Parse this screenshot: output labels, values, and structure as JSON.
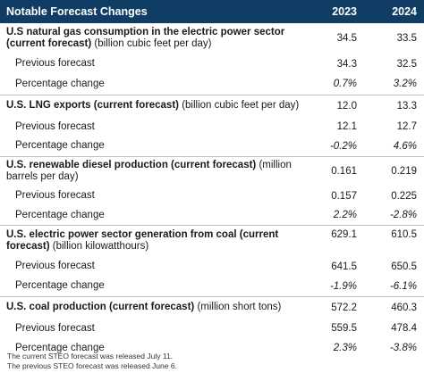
{
  "header": {
    "title": "Notable Forecast Changes",
    "year1": "2023",
    "year2": "2024"
  },
  "groups": [
    {
      "metric": "U.S natural gas consumption in the electric power sector (current forecast)",
      "unit": "(billion cubic feet per day)",
      "current": [
        "34.5",
        "33.5"
      ],
      "previous_label": "Previous forecast",
      "previous": [
        "34.3",
        "32.5"
      ],
      "change_label": "Percentage change",
      "change": [
        "0.7%",
        "3.2%"
      ]
    },
    {
      "metric": "U.S. LNG exports (current forecast)",
      "unit": "(billion cubic feet per day)",
      "current": [
        "12.0",
        "13.3"
      ],
      "previous_label": "Previous forecast",
      "previous": [
        "12.1",
        "12.7"
      ],
      "change_label": "Percentage change",
      "change": [
        "-0.2%",
        "4.6%"
      ]
    },
    {
      "metric": "U.S. renewable diesel production (current forecast)",
      "unit": "(million barrels per day)",
      "current": [
        "0.161",
        "0.219"
      ],
      "previous_label": "Previous forecast",
      "previous": [
        "0.157",
        "0.225"
      ],
      "change_label": "Percentage change",
      "change": [
        "2.2%",
        "-2.8%"
      ]
    },
    {
      "metric": "U.S. electric power sector generation from coal (current forecast)",
      "unit": "(billion kilowatthours)",
      "current": [
        "629.1",
        "610.5"
      ],
      "previous_label": "Previous forecast",
      "previous": [
        "641.5",
        "650.5"
      ],
      "change_label": "Percentage change",
      "change": [
        "-1.9%",
        "-6.1%"
      ]
    },
    {
      "metric": "U.S. coal production (current forecast)",
      "unit": "(million short tons)",
      "current": [
        "572.2",
        "460.3"
      ],
      "previous_label": "Previous forecast",
      "previous": [
        "559.5",
        "478.4"
      ],
      "change_label": "Percentage change",
      "change": [
        "2.3%",
        "-3.8%"
      ]
    }
  ],
  "footnotes": [
    "The current STEO forecast was released July 11.",
    "The previous STEO forecast was released June 6."
  ]
}
